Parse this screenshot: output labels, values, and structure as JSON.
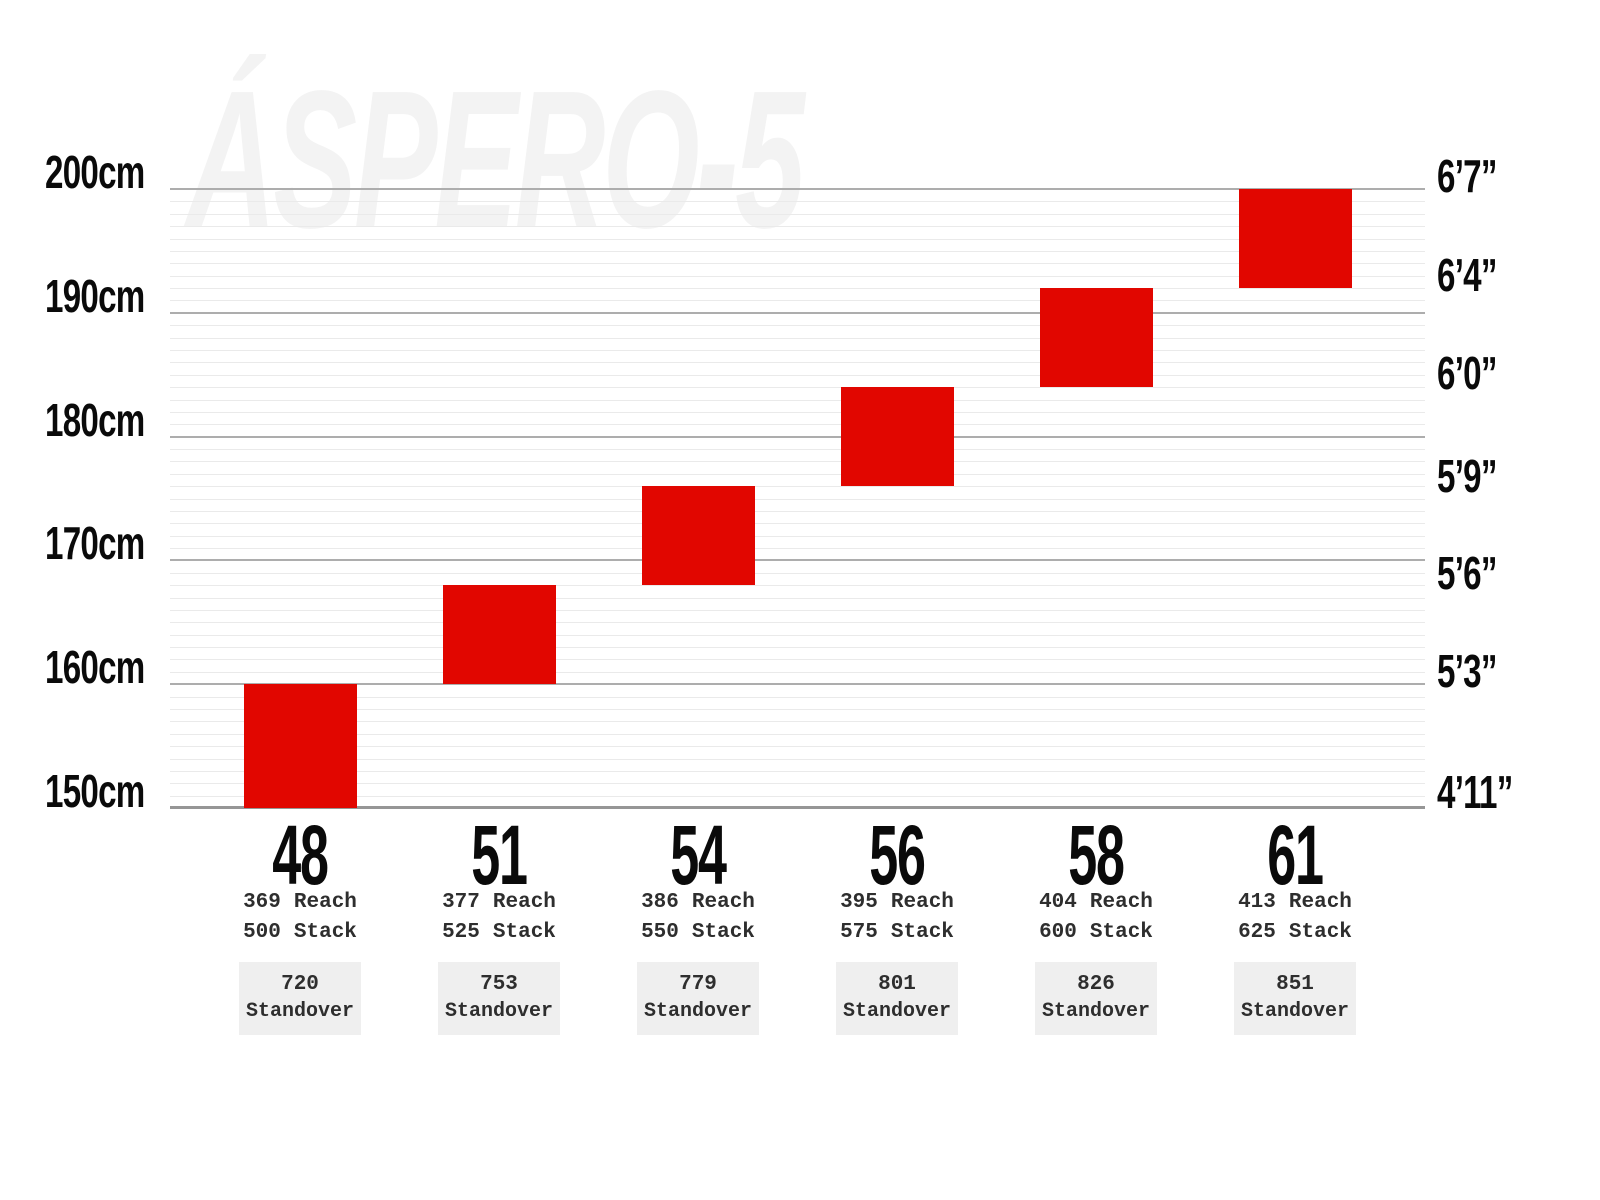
{
  "chart_data": {
    "type": "range-bar",
    "title_watermark": "ÁSPERO-5",
    "bar_color": "#e10600",
    "ylim_cm": [
      150,
      200
    ],
    "grid": {
      "minor_step_cm": 1,
      "major_step_cm": 10,
      "grid_on": true
    },
    "left_axis_ticks": [
      {
        "label": "200cm",
        "cm": 200
      },
      {
        "label": "190cm",
        "cm": 190
      },
      {
        "label": "180cm",
        "cm": 180
      },
      {
        "label": "170cm",
        "cm": 170
      },
      {
        "label": "160cm",
        "cm": 160
      },
      {
        "label": "150cm",
        "cm": 150
      }
    ],
    "right_axis_ticks": [
      {
        "label": "6’7”",
        "cm": 201.3
      },
      {
        "label": "6’4”",
        "cm": 193.3
      },
      {
        "label": "6’0”",
        "cm": 185.4
      },
      {
        "label": "5’9”",
        "cm": 177.1
      },
      {
        "label": "5’6”",
        "cm": 169.2
      },
      {
        "label": "5’3”",
        "cm": 161.3
      },
      {
        "label": "4’11”",
        "cm": 151.5
      }
    ],
    "column_labels": {
      "reach": "Reach",
      "stack": "Stack",
      "standover": "Standover"
    },
    "sizes": [
      {
        "size": "48",
        "rider_height_cm": [
          150,
          160
        ],
        "reach_mm": 369,
        "stack_mm": 500,
        "standover_mm": 720
      },
      {
        "size": "51",
        "rider_height_cm": [
          160,
          168
        ],
        "reach_mm": 377,
        "stack_mm": 525,
        "standover_mm": 753
      },
      {
        "size": "54",
        "rider_height_cm": [
          168,
          176
        ],
        "reach_mm": 386,
        "stack_mm": 550,
        "standover_mm": 779
      },
      {
        "size": "56",
        "rider_height_cm": [
          176,
          184
        ],
        "reach_mm": 395,
        "stack_mm": 575,
        "standover_mm": 801
      },
      {
        "size": "58",
        "rider_height_cm": [
          184,
          192
        ],
        "reach_mm": 404,
        "stack_mm": 600,
        "standover_mm": 826
      },
      {
        "size": "61",
        "rider_height_cm": [
          192,
          200
        ],
        "reach_mm": 413,
        "stack_mm": 625,
        "standover_mm": 851
      }
    ]
  }
}
